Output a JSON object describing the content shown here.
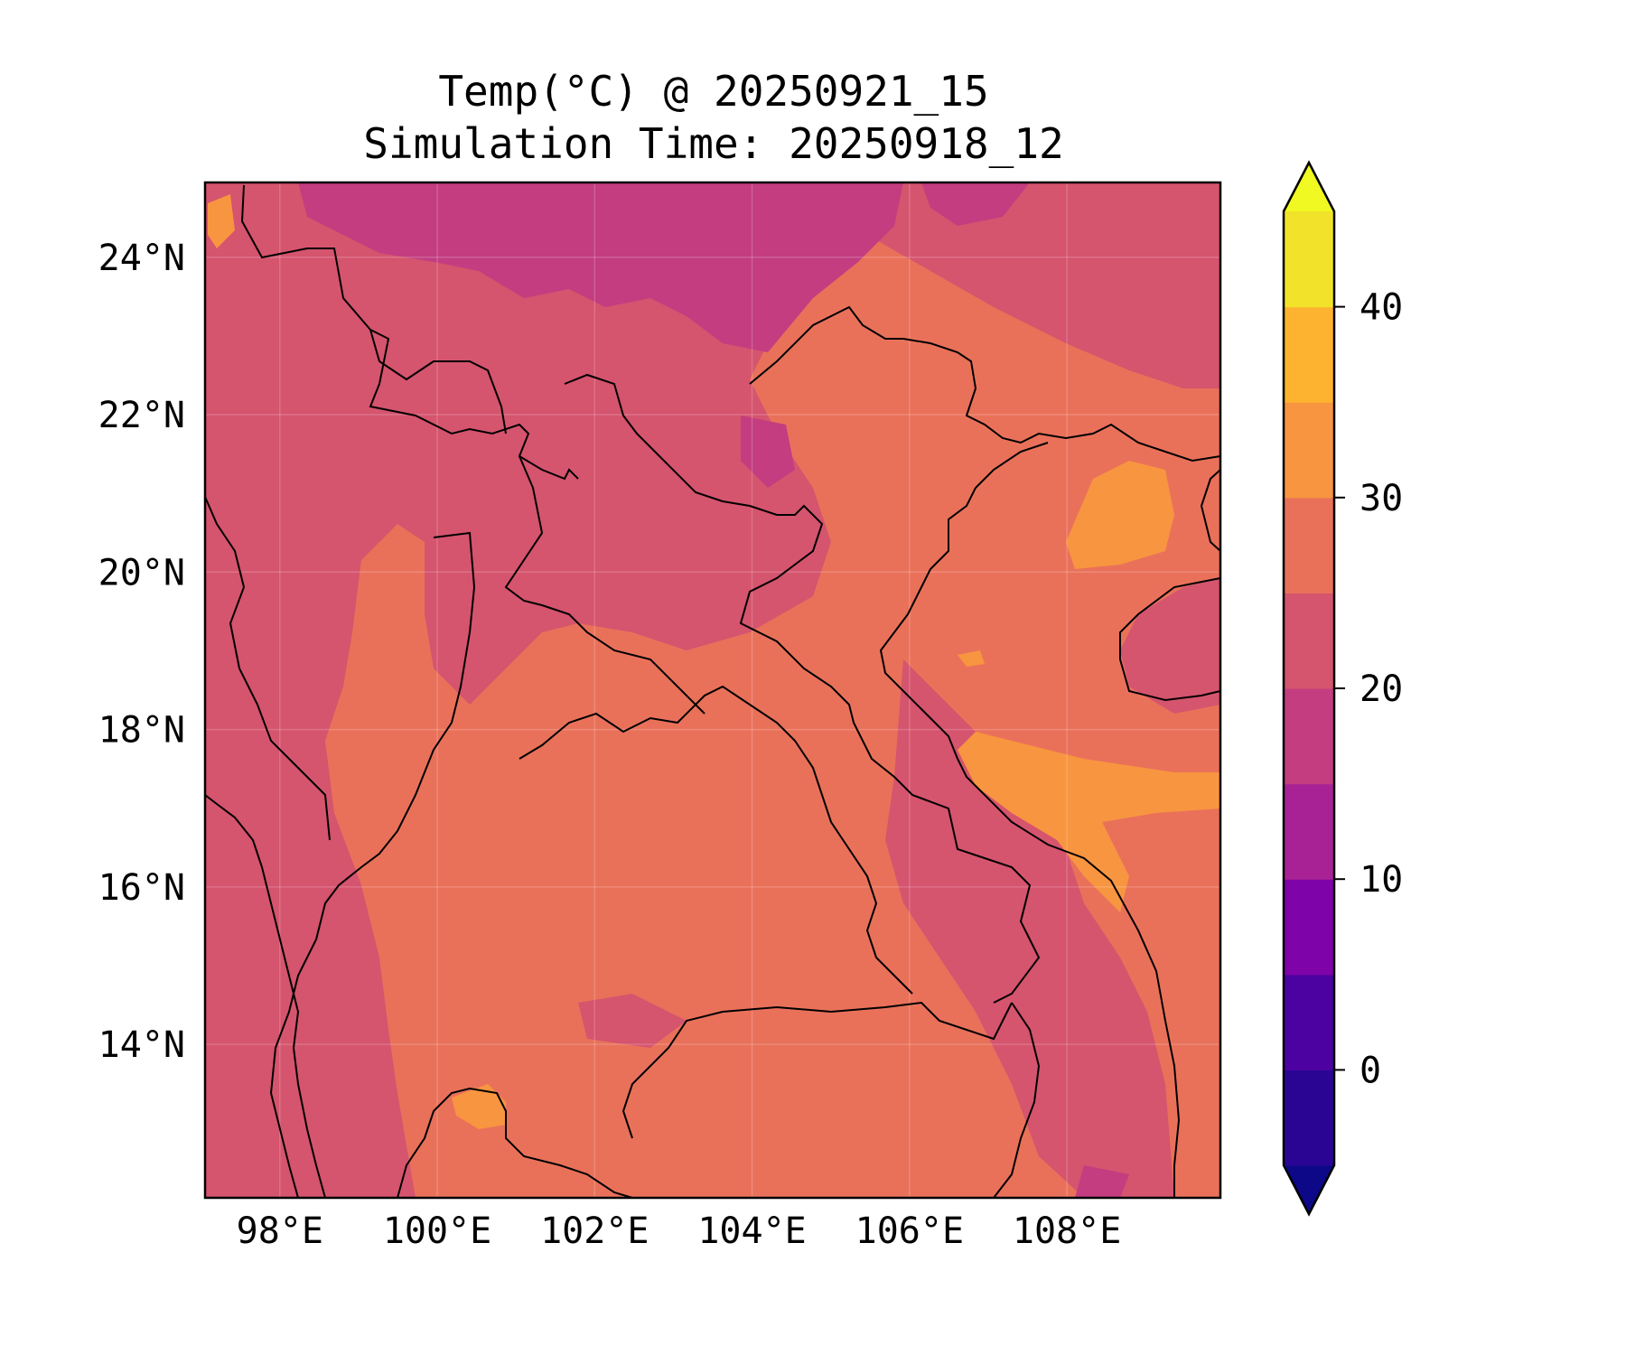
{
  "title": {
    "line1": "Temp(°C) @ 20250921_15",
    "line2": "Simulation Time: 20250918_12"
  },
  "chart_data": {
    "type": "heatmap",
    "variable_unit": "°C",
    "x_ticks": [
      "98°E",
      "100°E",
      "102°E",
      "104°E",
      "106°E",
      "108°E"
    ],
    "x_tick_values": [
      98,
      100,
      102,
      104,
      106,
      108
    ],
    "y_ticks": [
      "24°N",
      "22°N",
      "20°N",
      "18°N",
      "16°N",
      "14°N"
    ],
    "y_tick_values": [
      24,
      22,
      20,
      18,
      16,
      14
    ],
    "xlim": [
      97.05,
      109.95
    ],
    "ylim": [
      12.05,
      24.95
    ],
    "grid": true,
    "colorbar": {
      "ticks": [
        "0",
        "10",
        "20",
        "30",
        "40"
      ],
      "tick_values": [
        0,
        10,
        20,
        30,
        40
      ],
      "levels": [
        -5,
        0,
        5,
        10,
        15,
        20,
        25,
        30,
        35,
        40,
        45
      ],
      "extend": "both",
      "colormap": "plasma",
      "colors": [
        "#0d0887",
        "#2a0593",
        "#4c02a1",
        "#7e03a8",
        "#a82296",
        "#c33d80",
        "#d5546e",
        "#e9715a",
        "#f89540",
        "#fdb32f",
        "#f2e22a",
        "#f0f921"
      ]
    },
    "background_level_color": "#e9715a"
  }
}
